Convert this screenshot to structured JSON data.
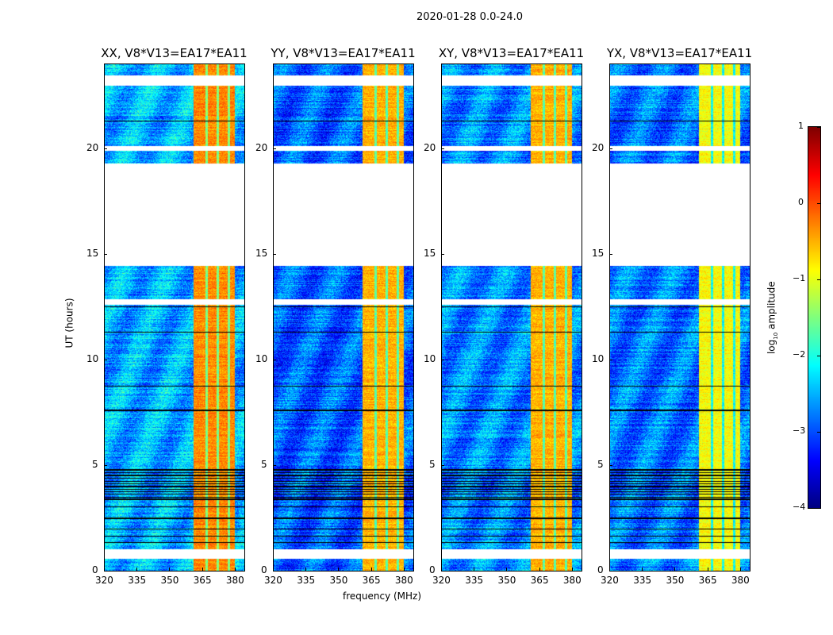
{
  "chart_data": {
    "type": "heatmap",
    "suptitle": "2020-01-28 0.0-24.0",
    "xlabel": "frequency (MHz)",
    "ylabel": "UT (hours)",
    "xlim": [
      320,
      384.4
    ],
    "ylim": [
      0,
      24
    ],
    "xticks": [
      "320",
      "335",
      "350",
      "365",
      "380"
    ],
    "xtick_values": [
      320,
      335,
      350,
      365,
      380
    ],
    "yticks": [
      "0",
      "5",
      "10",
      "15",
      "20"
    ],
    "ytick_values": [
      0,
      5,
      10,
      15,
      20
    ],
    "panels": [
      {
        "title": "XX, V8*V13=EA17*EA11",
        "background_level": -2.5,
        "band_level": -0.3
      },
      {
        "title": "YY, V8*V13=EA17*EA11",
        "background_level": -2.9,
        "band_level": -0.5
      },
      {
        "title": "XY, V8*V13=EA17*EA11",
        "background_level": -2.7,
        "band_level": -0.5
      },
      {
        "title": "YX, V8*V13=EA17*EA11",
        "background_level": -2.8,
        "band_level": -0.9
      }
    ],
    "bright_band_mhz": [
      361,
      380
    ],
    "band_notches_mhz": [
      367,
      372,
      377
    ],
    "flagged_white_hours": [
      [
        0.6,
        1.05
      ],
      [
        12.6,
        12.85
      ],
      [
        14.45,
        19.3
      ],
      [
        19.9,
        20.1
      ],
      [
        22.95,
        23.45
      ]
    ],
    "flagged_black_band_hours": [
      3.4,
      4.9
    ],
    "colorbar": {
      "label": "log10 amplitude",
      "label_base": "log",
      "label_sub": "10",
      "label_rest": " amplitude",
      "range": [
        -4,
        1
      ],
      "ticks": [
        "1",
        "0",
        "−1",
        "−2",
        "−3",
        "−4"
      ],
      "tick_values": [
        1,
        0,
        -1,
        -2,
        -3,
        -4
      ],
      "colormap": "jet"
    }
  }
}
